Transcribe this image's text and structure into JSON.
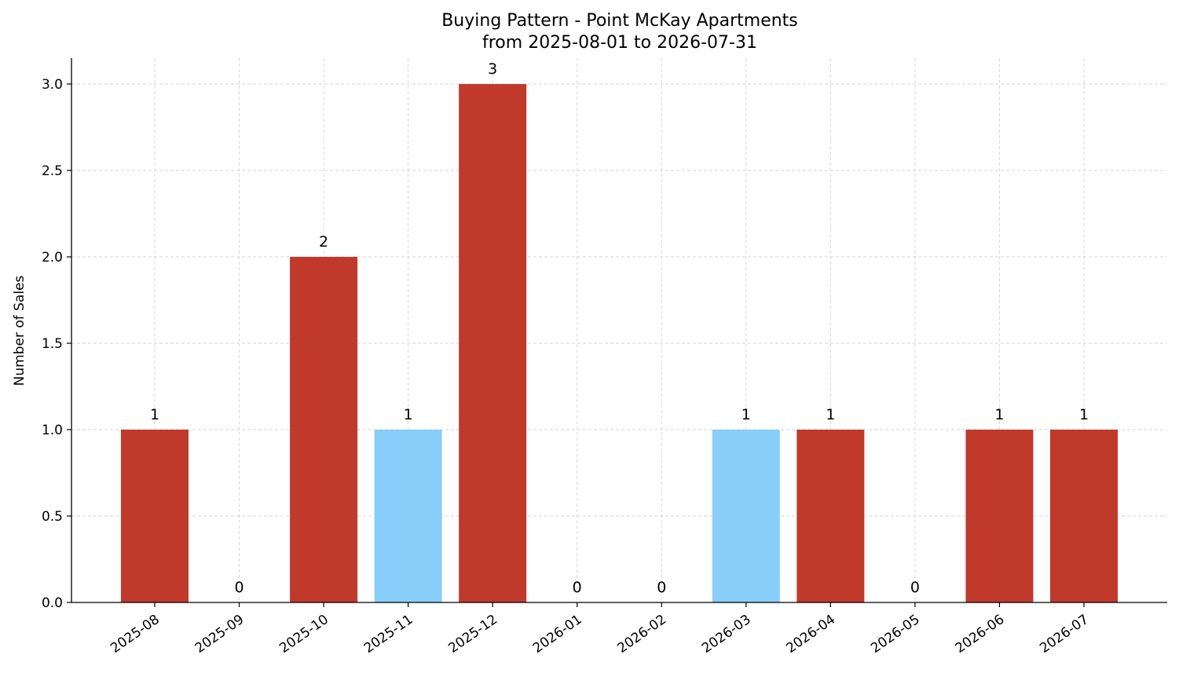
{
  "chart_data": {
    "type": "bar",
    "title": "Buying Pattern - Point McKay Apartments",
    "subtitle": "from 2025-08-01 to 2026-07-31",
    "xlabel": "",
    "ylabel": "Number of Sales",
    "categories": [
      "2025-08",
      "2025-09",
      "2025-10",
      "2025-11",
      "2025-12",
      "2026-01",
      "2026-02",
      "2026-03",
      "2026-04",
      "2026-05",
      "2026-06",
      "2026-07"
    ],
    "values": [
      1,
      0,
      2,
      1,
      3,
      0,
      0,
      1,
      1,
      0,
      1,
      1
    ],
    "bar_colors": [
      "#c0392b",
      "#c0392b",
      "#c0392b",
      "#87cefa",
      "#c0392b",
      "#c0392b",
      "#c0392b",
      "#87cefa",
      "#c0392b",
      "#c0392b",
      "#c0392b",
      "#c0392b"
    ],
    "data_labels": [
      "1",
      "0",
      "2",
      "1",
      "3",
      "0",
      "0",
      "1",
      "1",
      "0",
      "1",
      "1"
    ],
    "yticks": [
      "0.0",
      "0.5",
      "1.0",
      "1.5",
      "2.0",
      "2.5",
      "3.0"
    ],
    "ylim": [
      0,
      3.15
    ],
    "grid": true,
    "grid_color": "#d3d3d3",
    "axis_color": "#000000"
  }
}
